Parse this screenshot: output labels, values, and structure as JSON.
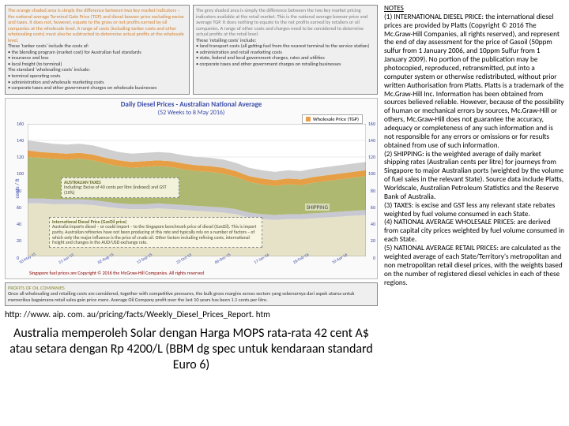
{
  "top_boxes": {
    "orange": {
      "lead": "The orange shaded area is simply the difference between two key market indicators – the national average Terminal Gate Price (TGP) and diesel bowser price excluding excise and taxes. It does not, however, equate to the gross or net profits earned by oil companies at the wholesale level. A range of costs (including tanker costs and other wholesaling costs) must also be subtracted to determine actual profits at the wholesale level.",
      "body": "These 'tanker costs' include the costs of:\n• the blending program (market cost) for Australian fuel standards\n• insurance and loss\n• local freight (to terminal)\nThe standard 'wholesaling costs' include:\n• terminal operating costs\n• administration and wholesale marketing costs\n• corporate taxes and other government charges on wholesale businesses"
    },
    "grey": {
      "lead": "The grey shaded area is simply the difference between the two key market pricing indicators available at the retail market. This is the national average bowser price and average TGP. It does nothing to equate to the net profits earned by retailers or oil companies. A range of other costs and charges need to be considered to determine actual profits at the retail level.",
      "body": "These 'retailing costs' include:\n• land transport costs (all getting fuel from the nearest terminal to the service station)\n• administration and retail marketing costs\n• state, federal and local government charges, rates and utilities\n• corporate taxes and other government charges on retailing businesses"
    }
  },
  "profits": {
    "title": "PROFITS OF OIL COMPANIES",
    "body": "Once all wholesaling and retailing costs are considered, together with competitive pressures, the bulk gross margins across sectors yang sebenarnya dari aspek utama untuk memeriksa bagaimana retail sales gain price more. Average Oil Company profit over the last 10 years has been 1.1 cents per litre."
  },
  "chart": {
    "title": "Daily Diesel Prices - Australian National Average",
    "subtitle": "(52 Weeks to 8 May 2016)",
    "legend_label": "Wholesale Price (TGP)",
    "ylabel": "cents / lt",
    "ylim": [
      0,
      160
    ],
    "ytick_step": 20,
    "colors": {
      "bg": "#ffffff",
      "grid": "#d8d8d8",
      "top_band": "#cfcfcf",
      "orange_band": "#e69f45",
      "tax_band": "#aeb870",
      "shipping_band": "#c8c8d2",
      "intl_band": "#e6e2c8",
      "axis_text": "#3a4aa8"
    },
    "callouts": {
      "taxes": {
        "title": "AUSTRALIAN TAXES",
        "body": "Including: Excise of 40 cents per litre (indexed) and GST (10%)"
      },
      "intl": {
        "title": "International Diesel Price (GasOil price)",
        "body": "Australia imports diesel – or could import – to the Singapore benchmark price of diesel (GasOil). This is import parity. Australian refineries have not been producing at this rate and typically rely on a number of factors – of which only the major influence is the price of crude oil. Other factors including refining costs, international freight and changes in the AUD/USD exchange rate."
      }
    },
    "shipping_label": "SHIPPING",
    "x_dates": [
      "10-May-15",
      "24-May-15",
      "07-Jun-15",
      "21-Jun-15",
      "05-Jul-15",
      "19-Jul-15",
      "02-Aug-15",
      "16-Aug-15",
      "30-Aug-15",
      "13-Sep-15",
      "27-Sep-15",
      "11-Oct-15",
      "25-Oct-15",
      "08-Nov-15",
      "22-Nov-15",
      "06-Dec-15",
      "20-Dec-15",
      "03-Jan-16",
      "17-Jan-16",
      "31-Jan-16",
      "14-Feb-16",
      "28-Feb-16",
      "13-Mar-16",
      "27-Mar-16",
      "10-Apr-16",
      "24-Apr-16",
      "08-May-16"
    ],
    "series": {
      "retail_top": [
        140,
        138,
        136,
        135,
        136,
        134,
        130,
        126,
        124,
        125,
        126,
        125,
        122,
        120,
        119,
        117,
        113,
        107,
        104,
        102,
        104,
        103,
        106,
        108,
        110,
        112,
        114
      ],
      "tgp": [
        128,
        126,
        125,
        124,
        125,
        123,
        119,
        116,
        114,
        115,
        116,
        115,
        112,
        110,
        109,
        107,
        103,
        97,
        94,
        92,
        94,
        93,
        96,
        98,
        100,
        102,
        104
      ],
      "tax_top": [
        120,
        119,
        118,
        117,
        118,
        116,
        112,
        109,
        107,
        108,
        109,
        108,
        105,
        103,
        102,
        100,
        96,
        90,
        87,
        85,
        87,
        86,
        89,
        91,
        93,
        95,
        97
      ],
      "ship_top": [
        70,
        70,
        69,
        69,
        69,
        68,
        66,
        64,
        63,
        63,
        64,
        63,
        62,
        61,
        60,
        59,
        57,
        53,
        51,
        50,
        51,
        51,
        52,
        53,
        54,
        55,
        56
      ],
      "intl_top": [
        64,
        64,
        63,
        63,
        63,
        62,
        60,
        58,
        57,
        57,
        58,
        57,
        56,
        55,
        54,
        53,
        51,
        47,
        45,
        44,
        45,
        45,
        46,
        47,
        48,
        49,
        50
      ]
    },
    "copyright": "Singapore fuel prices are Copyright © 2016 the McGraw-Hill Companies. All rights reserved"
  },
  "url": "http: //www. aip. com. au/pricing/facts/Weekly_Diesel_Prices_Report. htm",
  "headline": "Australia memperoleh Solar dengan Harga MOPS rata-rata 42 cent A$ atau setara dengan Rp 4200/L (BBM dg spec untuk kendaraan standard Euro 6)",
  "notes": {
    "title": "NOTES",
    "body": "(1) INTERNATIONAL DIESEL PRICE: the international diesel prices are provided by Platts (Copyright © 2016 The Mc.Graw-Hill Companies, all rights reserved), and represent the end of day assessment for the price of Gasoil (50ppm sulfur from 1 January 2006, and 10ppm Sulfur from 1 January 2009). No portion of the publication may be photocopied, reproduced, retransmitted, put into a computer system or otherwise redistributed, without prior written Authorisation from Platts. Platts is a trademark of the Mc.Graw-Hill Inc. Information has been obtained from sources believed reliable. However, because of the possibility of human or mechanical errors by sources, Mc.Graw-Hill or others, Mc.Graw-Hill does not guarantee the accuracy, adequacy or completeness of any such information and is not responsible for any errors or omissions or for results obtained from use of such information.\n(2) SHIPPING: is the weighted average of daily market shipping rates (Australian cents per litre) for journeys from Singapore to major Australian ports (weighted by the volume of fuel sales in the relevant State). Source data include Platts, Worldscale, Australian Petroleum Statistics and the Reserve Bank of Australia.\n(3) TAXES: is excise and GST less any relevant state rebates weighted by fuel volume consumed in each State.\n(4) NATIONAL AVERAGE WHOLESALE PRICES: are derived from capital city prices weighted by fuel volume consumed in each State.\n(5) NATIONAL AVERAGE RETAIL PRICES: are calculated as the weighted average of each State/Territory's metropolitan and non metropolitan retail diesel prices, with the weights based on the number of registered diesel vehicles in each of these regions."
  }
}
